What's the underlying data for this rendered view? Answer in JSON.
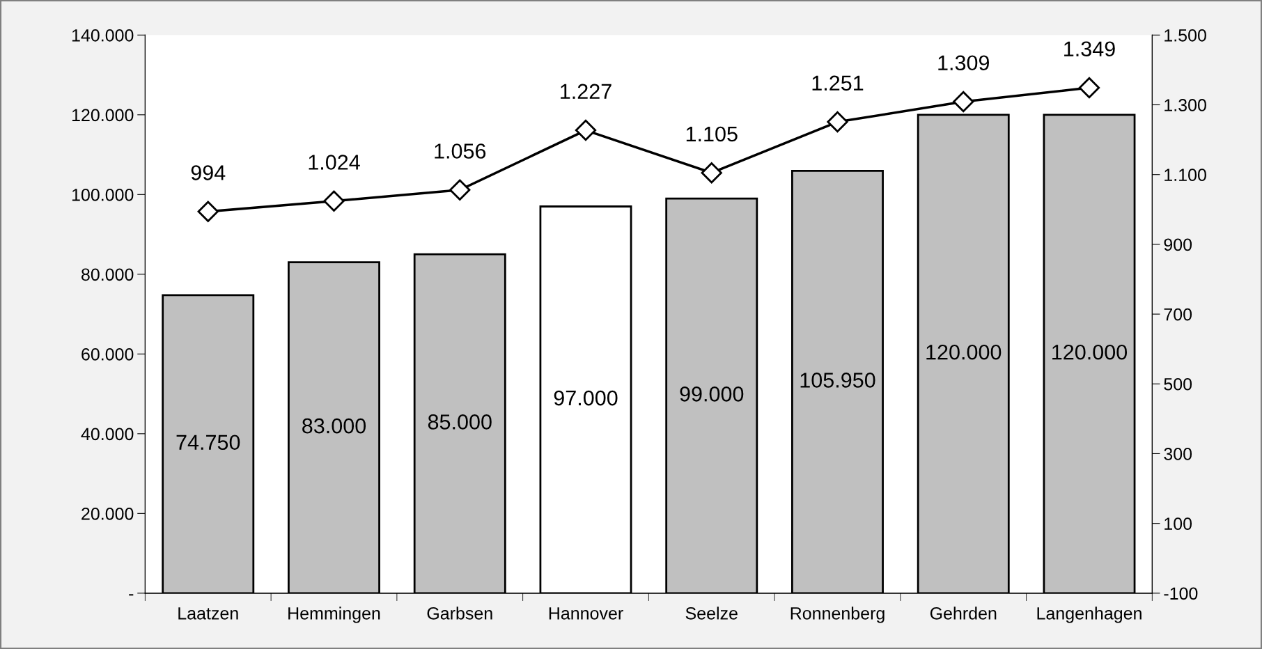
{
  "chart_data": {
    "type": "bar",
    "categories": [
      "Laatzen",
      "Hemmingen",
      "Garbsen",
      "Hannover",
      "Seelze",
      "Ronnenberg",
      "Gehrden",
      "Langenhagen"
    ],
    "series": [
      {
        "colors": [
          "#c0c0c0",
          "#c0c0c0",
          "#c0c0c0",
          "#ffffff",
          "#c0c0c0",
          "#c0c0c0",
          "#c0c0c0",
          "#c0c0c0"
        ],
        "values": [
          74750,
          83000,
          85000,
          97000,
          99000,
          105950,
          120000,
          120000
        ],
        "value_labels": [
          "74.750",
          "83.000",
          "85.000",
          "97.000",
          "99.000",
          "105.950",
          "120.000",
          "120.000"
        ]
      },
      {
        "type": "line",
        "axis": "y2",
        "color": "#000000",
        "marker": "diamond",
        "line_style": "solid",
        "values": [
          994,
          1024,
          1056,
          1227,
          1105,
          1251,
          1309,
          1349
        ],
        "value_labels": [
          "994",
          "1.024",
          "1.056",
          "1.227",
          "1.105",
          "1.251",
          "1.309",
          "1.349"
        ]
      }
    ],
    "ylim": [
      0,
      140000
    ],
    "yticks": [
      {
        "value": 0,
        "label": "-"
      },
      {
        "value": 20000,
        "label": "20.000"
      },
      {
        "value": 40000,
        "label": "40.000"
      },
      {
        "value": 60000,
        "label": "60.000"
      },
      {
        "value": 80000,
        "label": "80.000"
      },
      {
        "value": 100000,
        "label": "100.000"
      },
      {
        "value": 120000,
        "label": "120.000"
      },
      {
        "value": 140000,
        "label": "140.000"
      }
    ],
    "y2lim": [
      -100,
      1500
    ],
    "y2ticks": [
      -100,
      100,
      300,
      500,
      700,
      900,
      {
        "value": 1100,
        "label": "1.100"
      },
      {
        "value": 1300,
        "label": "1.300"
      },
      {
        "value": 1500,
        "label": "1.500"
      }
    ],
    "grid": false,
    "legend": false
  }
}
